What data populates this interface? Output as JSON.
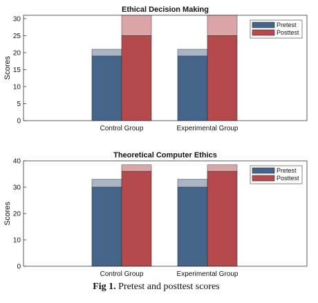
{
  "chart_data": [
    {
      "type": "bar",
      "title": "Ethical Decision Making",
      "ylabel": "Scores",
      "xlabel": "",
      "categories": [
        "Control Group",
        "Experimental Group"
      ],
      "ylim": [
        0,
        31
      ],
      "yticks": [
        0,
        5,
        10,
        15,
        20,
        25,
        30
      ],
      "grid": false,
      "legend": "top-right",
      "series": [
        {
          "name": "Pretest",
          "values": [
            19,
            19
          ],
          "upper": [
            21,
            21
          ],
          "color": "#44648a",
          "light_color": "#a7b5c7"
        },
        {
          "name": "Posttest",
          "values": [
            25,
            25
          ],
          "upper": [
            31,
            31
          ],
          "color": "#b54a4d",
          "light_color": "#dba5a7"
        }
      ]
    },
    {
      "type": "bar",
      "title": "Theoretical Computer Ethics",
      "ylabel": "Scores",
      "xlabel": "",
      "categories": [
        "Control Group",
        "Experimental Group"
      ],
      "ylim": [
        0,
        40
      ],
      "yticks": [
        0,
        10,
        20,
        30,
        40
      ],
      "grid": false,
      "legend": "top-right",
      "series": [
        {
          "name": "Pretest",
          "values": [
            30,
            30
          ],
          "upper": [
            33,
            33
          ],
          "color": "#44648a",
          "light_color": "#a7b5c7"
        },
        {
          "name": "Posttest",
          "values": [
            36,
            36
          ],
          "upper": [
            38.5,
            38.5
          ],
          "color": "#b54a4d",
          "light_color": "#dba5a7"
        }
      ]
    }
  ],
  "caption": {
    "label": "Fig 1.",
    "text": " Pretest and posttest scores"
  }
}
